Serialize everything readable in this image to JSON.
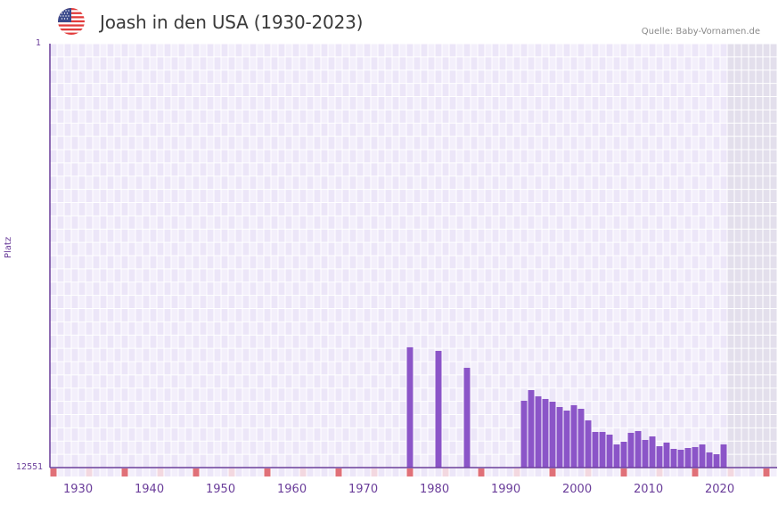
{
  "header": {
    "title": "Joash in den USA (1930-2023)",
    "source": "Quelle: Baby-Vornamen.de",
    "flag_icon": "usa-flag-icon"
  },
  "axis": {
    "y_title": "Platz",
    "y_top_label": "1",
    "y_bottom_label": "12551",
    "x_ticks": [
      "1930",
      "1940",
      "1950",
      "1960",
      "1970",
      "1980",
      "1990",
      "2000",
      "2010",
      "2020"
    ]
  },
  "colors": {
    "bar": "#8b55c8",
    "axis": "#6a3d9a",
    "grid_bg_a": "#f3effb",
    "grid_bg_b": "#ece6f8",
    "future_shade": "#e3dfec",
    "decade_marker": "#e07078",
    "halfdecade_marker": "#f3d8e0"
  },
  "chart_data": {
    "type": "bar",
    "title": "Joash in den USA (1930-2023)",
    "xlabel": "",
    "ylabel": "Platz",
    "y_inverted": true,
    "ylim": [
      1,
      12551
    ],
    "xlim": [
      1928,
      2029
    ],
    "grid": true,
    "x": [
      1978,
      1982,
      1986,
      1994,
      1995,
      1996,
      1997,
      1998,
      1999,
      2000,
      2001,
      2002,
      2003,
      2004,
      2005,
      2006,
      2007,
      2008,
      2009,
      2010,
      2011,
      2012,
      2013,
      2014,
      2015,
      2016,
      2017,
      2018,
      2019,
      2020,
      2021,
      2022
    ],
    "values": [
      8990,
      9096,
      9597,
      10573,
      10257,
      10441,
      10520,
      10599,
      10758,
      10863,
      10705,
      10810,
      11153,
      11496,
      11496,
      11575,
      11865,
      11786,
      11522,
      11469,
      11733,
      11628,
      11918,
      11812,
      11997,
      12023,
      11971,
      11944,
      11865,
      12102,
      12155,
      11865
    ],
    "shaded_future_from": 2023
  }
}
